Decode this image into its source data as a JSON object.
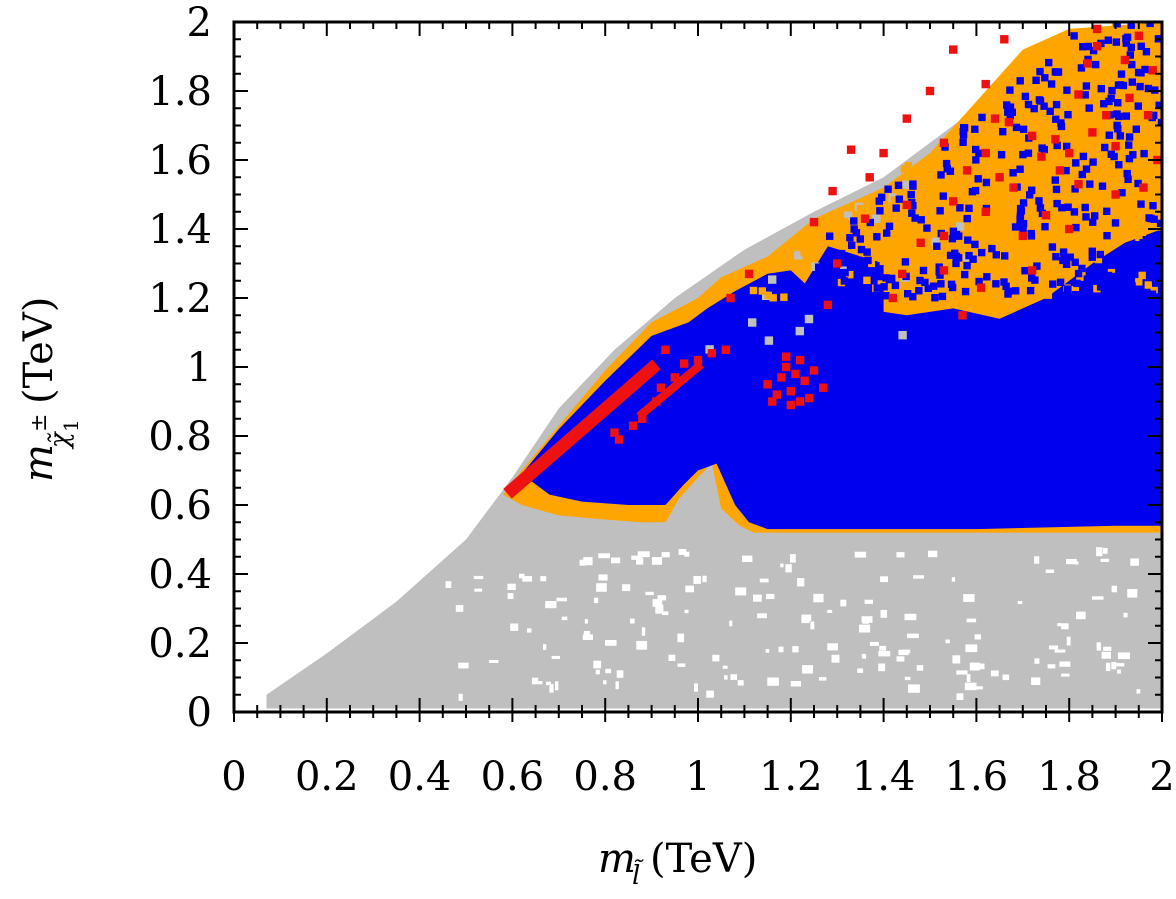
{
  "chart_data": {
    "type": "scatter",
    "title": "",
    "xlabel": {
      "base": "m",
      "subscript": "l̃",
      "suffix": "(TeV)"
    },
    "ylabel": {
      "base": "m",
      "subscript": "χ̃",
      "subsub": "1",
      "sup": "±",
      "suffix": "(TeV)"
    },
    "xlim": [
      0,
      2
    ],
    "ylim": [
      0,
      2
    ],
    "xticks": [
      {
        "value": 0,
        "label": "0"
      },
      {
        "value": 0.2,
        "label": "0.2"
      },
      {
        "value": 0.4,
        "label": "0.4"
      },
      {
        "value": 0.6,
        "label": "0.6"
      },
      {
        "value": 0.8,
        "label": "0.8"
      },
      {
        "value": 1,
        "label": "1"
      },
      {
        "value": 1.2,
        "label": "1.2"
      },
      {
        "value": 1.4,
        "label": "1.4"
      },
      {
        "value": 1.6,
        "label": "1.6"
      },
      {
        "value": 1.8,
        "label": "1.8"
      },
      {
        "value": 2,
        "label": "2"
      }
    ],
    "yticks": [
      {
        "value": 0,
        "label": "0"
      },
      {
        "value": 0.2,
        "label": "0.2"
      },
      {
        "value": 0.4,
        "label": "0.4"
      },
      {
        "value": 0.6,
        "label": "0.6"
      },
      {
        "value": 0.8,
        "label": "0.8"
      },
      {
        "value": 1,
        "label": "1"
      },
      {
        "value": 1.2,
        "label": "1.2"
      },
      {
        "value": 1.4,
        "label": "1.4"
      },
      {
        "value": 1.6,
        "label": "1.6"
      },
      {
        "value": 1.8,
        "label": "1.8"
      },
      {
        "value": 2,
        "label": "2"
      }
    ],
    "grid": false,
    "legend": "none",
    "colors": {
      "gray": "#bfbfbf",
      "orange": "#ffa500",
      "blue": "#0000ee",
      "red": "#ee1111"
    },
    "regions": [
      {
        "color": "gray",
        "polygon": [
          [
            0.07,
            0.01
          ],
          [
            0.07,
            0.05
          ],
          [
            0.2,
            0.17
          ],
          [
            0.35,
            0.32
          ],
          [
            0.5,
            0.5
          ],
          [
            0.6,
            0.68
          ],
          [
            0.7,
            0.88
          ],
          [
            0.82,
            1.05
          ],
          [
            0.95,
            1.2
          ],
          [
            1.1,
            1.34
          ],
          [
            1.25,
            1.45
          ],
          [
            1.4,
            1.55
          ],
          [
            1.55,
            1.7
          ],
          [
            1.7,
            1.85
          ],
          [
            1.85,
            1.97
          ],
          [
            2.0,
            2.0
          ],
          [
            2.0,
            0.01
          ]
        ]
      },
      {
        "color": "orange",
        "polygon": [
          [
            0.58,
            0.63
          ],
          [
            0.62,
            0.7
          ],
          [
            0.7,
            0.83
          ],
          [
            0.8,
            0.99
          ],
          [
            0.9,
            1.13
          ],
          [
            1.0,
            1.2
          ],
          [
            1.05,
            1.26
          ],
          [
            1.15,
            1.32
          ],
          [
            1.25,
            1.43
          ],
          [
            1.4,
            1.52
          ],
          [
            1.5,
            1.62
          ],
          [
            1.6,
            1.77
          ],
          [
            1.7,
            1.92
          ],
          [
            1.8,
            1.98
          ],
          [
            2.0,
            2.0
          ],
          [
            2.0,
            0.52
          ],
          [
            1.6,
            0.52
          ],
          [
            1.2,
            0.52
          ],
          [
            1.12,
            0.52
          ],
          [
            1.09,
            0.54
          ],
          [
            1.05,
            0.59
          ],
          [
            1.03,
            0.72
          ],
          [
            1.0,
            0.68
          ],
          [
            0.96,
            0.62
          ],
          [
            0.93,
            0.55
          ],
          [
            0.88,
            0.55
          ],
          [
            0.78,
            0.56
          ],
          [
            0.7,
            0.57
          ],
          [
            0.62,
            0.6
          ]
        ]
      },
      {
        "color": "blue",
        "polygon": [
          [
            0.62,
            0.69
          ],
          [
            0.7,
            0.82
          ],
          [
            0.8,
            0.96
          ],
          [
            0.9,
            1.09
          ],
          [
            0.98,
            1.13
          ],
          [
            1.02,
            1.17
          ],
          [
            1.08,
            1.22
          ],
          [
            1.15,
            1.27
          ],
          [
            1.2,
            1.28
          ],
          [
            1.28,
            1.18
          ],
          [
            1.35,
            1.17
          ],
          [
            1.45,
            1.15
          ],
          [
            1.55,
            1.17
          ],
          [
            1.65,
            1.14
          ],
          [
            1.75,
            1.2
          ],
          [
            1.85,
            1.3
          ],
          [
            1.92,
            1.36
          ],
          [
            2.0,
            1.4
          ],
          [
            2.0,
            0.54
          ],
          [
            1.9,
            0.54
          ],
          [
            1.6,
            0.53
          ],
          [
            1.4,
            0.53
          ],
          [
            1.2,
            0.53
          ],
          [
            1.15,
            0.53
          ],
          [
            1.11,
            0.55
          ],
          [
            1.08,
            0.6
          ],
          [
            1.06,
            0.66
          ],
          [
            1.04,
            0.72
          ],
          [
            1.0,
            0.7
          ],
          [
            0.97,
            0.66
          ],
          [
            0.93,
            0.6
          ],
          [
            0.85,
            0.6
          ],
          [
            0.75,
            0.61
          ],
          [
            0.68,
            0.63
          ]
        ]
      },
      {
        "color": "blue",
        "polygon": [
          [
            1.15,
            0.92
          ],
          [
            1.18,
            1.04
          ],
          [
            1.22,
            1.22
          ],
          [
            1.28,
            1.35
          ],
          [
            1.4,
            1.3
          ],
          [
            1.4,
            1.1
          ],
          [
            1.3,
            1.02
          ],
          [
            1.22,
            0.94
          ]
        ]
      }
    ],
    "lines": [
      {
        "color": "red",
        "width": 0.028,
        "points": [
          [
            0.6,
            0.645
          ],
          [
            0.75,
            0.82
          ],
          [
            0.9,
            0.995
          ]
        ]
      },
      {
        "color": "red",
        "width": 0.018,
        "points": [
          [
            0.88,
            0.865
          ],
          [
            1.0,
            1.0
          ]
        ]
      }
    ],
    "scatter_clouds": [
      {
        "color": "gray",
        "seed": 7,
        "count": 40,
        "xr": [
          0.9,
          1.6
        ],
        "yr": [
          1.05,
          1.55
        ],
        "size": 0.018
      },
      {
        "color": "orange",
        "seed": 11,
        "count": 260,
        "xr": [
          1.1,
          2.0
        ],
        "yr": [
          1.2,
          2.0
        ],
        "size": 0.016
      },
      {
        "color": "blue",
        "seed": 23,
        "count": 520,
        "xr": [
          1.2,
          2.0
        ],
        "yr": [
          1.2,
          2.0
        ],
        "size": 0.016
      }
    ],
    "white_holes": {
      "seed": 31,
      "count": 170,
      "xr": [
        0.45,
        1.95
      ],
      "yr": [
        0.05,
        0.48
      ]
    },
    "red_points": [
      [
        1.15,
        0.95
      ],
      [
        1.17,
        0.92
      ],
      [
        1.18,
        0.97
      ],
      [
        1.19,
        1.0
      ],
      [
        1.2,
        0.93
      ],
      [
        1.21,
        0.98
      ],
      [
        1.22,
        1.02
      ],
      [
        1.23,
        0.96
      ],
      [
        1.24,
        0.91
      ],
      [
        1.2,
        0.89
      ],
      [
        1.25,
        0.99
      ],
      [
        1.27,
        0.94
      ],
      [
        1.16,
        0.9
      ],
      [
        1.22,
        0.9
      ],
      [
        1.19,
        1.03
      ],
      [
        0.95,
        0.97
      ],
      [
        0.97,
        1.01
      ],
      [
        1.0,
        1.02
      ],
      [
        1.03,
        1.04
      ],
      [
        0.91,
        0.9
      ],
      [
        0.88,
        0.85
      ],
      [
        0.86,
        0.83
      ],
      [
        0.83,
        0.79
      ],
      [
        0.92,
        0.94
      ],
      [
        1.06,
        1.05
      ],
      [
        1.07,
        1.2
      ],
      [
        1.11,
        1.27
      ],
      [
        0.93,
        1.05
      ],
      [
        0.82,
        0.81
      ],
      [
        1.53,
        1.38
      ],
      [
        1.55,
        1.48
      ],
      [
        1.58,
        1.57
      ],
      [
        1.62,
        1.82
      ],
      [
        1.64,
        1.72
      ],
      [
        1.67,
        1.71
      ],
      [
        1.72,
        1.67
      ],
      [
        1.74,
        1.61
      ],
      [
        1.78,
        1.57
      ],
      [
        1.8,
        1.62
      ],
      [
        1.82,
        1.79
      ],
      [
        1.84,
        1.88
      ],
      [
        1.86,
        1.93
      ],
      [
        1.88,
        1.73
      ],
      [
        1.9,
        1.64
      ],
      [
        1.92,
        1.89
      ],
      [
        1.95,
        1.96
      ],
      [
        1.97,
        1.73
      ],
      [
        1.98,
        1.86
      ],
      [
        1.96,
        1.52
      ],
      [
        1.9,
        1.5
      ],
      [
        1.82,
        1.53
      ],
      [
        1.75,
        1.44
      ],
      [
        1.62,
        1.45
      ],
      [
        1.45,
        1.47
      ],
      [
        1.48,
        1.36
      ],
      [
        1.36,
        1.43
      ],
      [
        1.29,
        1.51
      ],
      [
        1.25,
        1.42
      ],
      [
        1.53,
        1.28
      ],
      [
        1.42,
        1.2
      ],
      [
        1.28,
        1.18
      ],
      [
        1.44,
        1.27
      ],
      [
        1.61,
        1.23
      ],
      [
        1.72,
        1.28
      ],
      [
        1.7,
        1.38
      ],
      [
        1.8,
        1.4
      ],
      [
        1.65,
        1.55
      ],
      [
        1.57,
        1.15
      ],
      [
        1.62,
        1.62
      ],
      [
        1.68,
        1.52
      ],
      [
        1.77,
        1.66
      ],
      [
        1.85,
        1.68
      ],
      [
        1.93,
        1.78
      ],
      [
        1.99,
        1.6
      ],
      [
        1.86,
        1.98
      ],
      [
        1.66,
        1.95
      ],
      [
        1.55,
        1.92
      ],
      [
        1.5,
        1.8
      ],
      [
        1.45,
        1.72
      ],
      [
        1.53,
        1.65
      ],
      [
        1.4,
        1.62
      ],
      [
        1.33,
        1.63
      ],
      [
        1.37,
        1.55
      ],
      [
        1.3,
        1.3
      ]
    ]
  }
}
